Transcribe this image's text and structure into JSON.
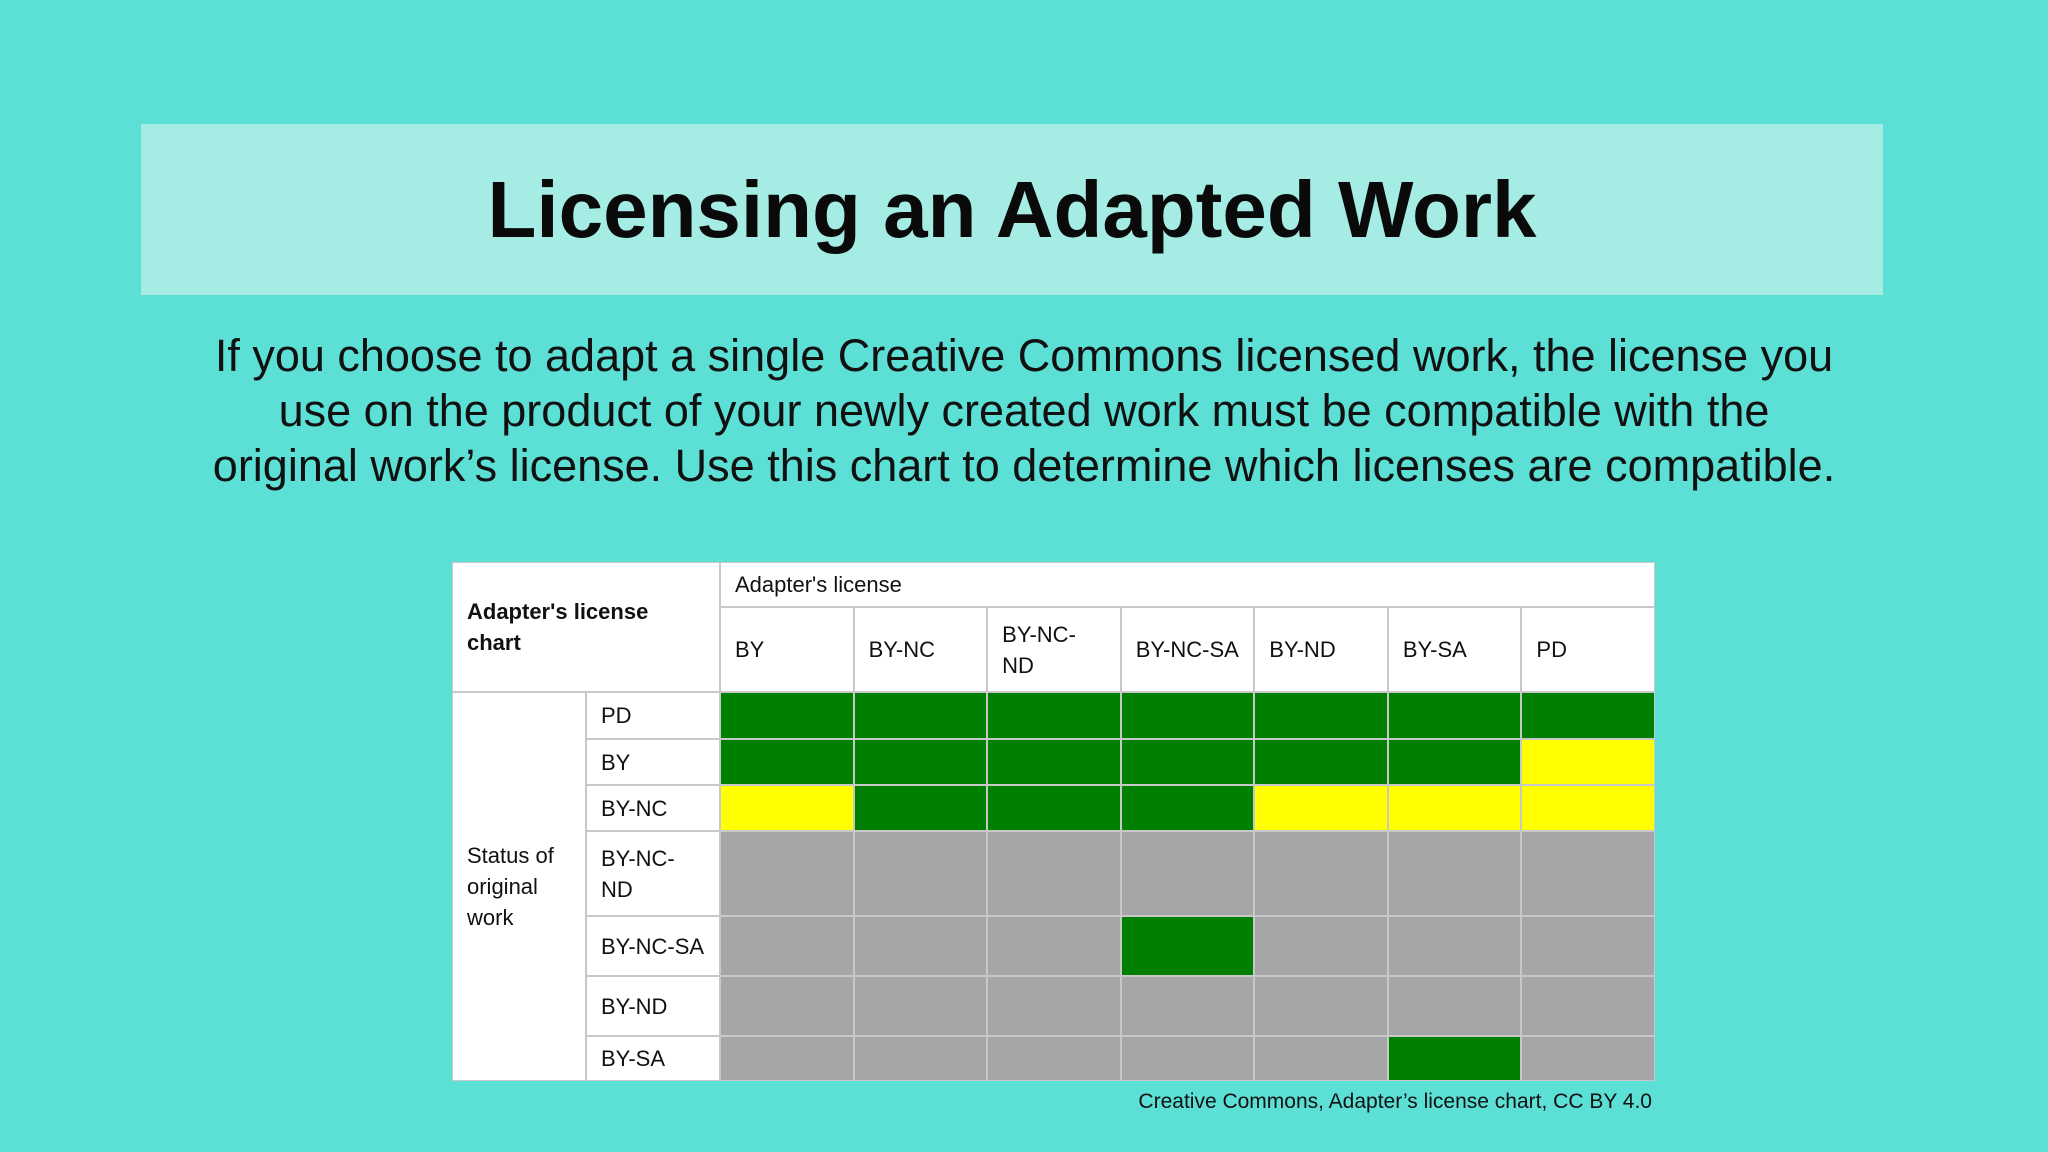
{
  "header": {
    "title": "Licensing an Adapted Work"
  },
  "intro": {
    "lines": [
      "If you choose to adapt a single Creative Commons licensed work, the license you",
      "use on the product of your newly created work must be compatible with the",
      "original work’s license. Use this chart to determine which licenses are compatible."
    ]
  },
  "table": {
    "corner": "Adapter's license chart",
    "column_group": "Adapter's license",
    "row_group": "Status of original work",
    "columns": [
      "BY",
      "BY-NC",
      "BY-NC-ND",
      "BY-NC-SA",
      "BY-ND",
      "BY-SA",
      "PD"
    ],
    "rows": [
      "PD",
      "BY",
      "BY-NC",
      "BY-NC-ND",
      "BY-NC-SA",
      "BY-ND",
      "BY-SA"
    ],
    "cell_colors": [
      [
        "#008000",
        "#008000",
        "#008000",
        "#008000",
        "#008000",
        "#008000",
        "#008000"
      ],
      [
        "#008000",
        "#008000",
        "#008000",
        "#008000",
        "#008000",
        "#008000",
        "#ffff00"
      ],
      [
        "#ffff00",
        "#008000",
        "#008000",
        "#008000",
        "#ffff00",
        "#ffff00",
        "#ffff00"
      ],
      [
        "#a6a6a6",
        "#a6a6a6",
        "#a6a6a6",
        "#a6a6a6",
        "#a6a6a6",
        "#a6a6a6",
        "#a6a6a6"
      ],
      [
        "#a6a6a6",
        "#a6a6a6",
        "#a6a6a6",
        "#008000",
        "#a6a6a6",
        "#a6a6a6",
        "#a6a6a6"
      ],
      [
        "#a6a6a6",
        "#a6a6a6",
        "#a6a6a6",
        "#a6a6a6",
        "#a6a6a6",
        "#a6a6a6",
        "#a6a6a6"
      ],
      [
        "#a6a6a6",
        "#a6a6a6",
        "#a6a6a6",
        "#a6a6a6",
        "#a6a6a6",
        "#008000",
        "#a6a6a6"
      ]
    ]
  },
  "caption": "Creative Commons, Adapter’s license chart, CC BY 4.0"
}
